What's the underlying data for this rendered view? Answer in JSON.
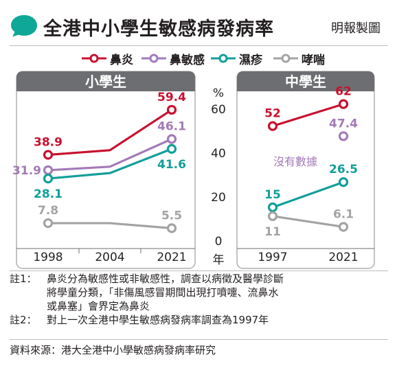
{
  "header": {
    "title": "全港中小學生敏感病發病率",
    "credit": "明報製圖"
  },
  "colors": {
    "rhinitis": "#c8102e",
    "allergic_rhinitis": "#a37ab8",
    "eczema": "#119e9a",
    "asthma": "#a3a3a3",
    "panel_header": "#6d6e71",
    "bubble": "#0fa896"
  },
  "legend": [
    {
      "key": "rhinitis",
      "label": "鼻炎"
    },
    {
      "key": "allergic_rhinitis",
      "label": "鼻敏感"
    },
    {
      "key": "eczema",
      "label": "濕疹"
    },
    {
      "key": "asthma",
      "label": "哮喘"
    }
  ],
  "chart_data": [
    {
      "type": "line",
      "title": "小學生",
      "x": [
        "1998",
        "2004",
        "2021"
      ],
      "ylim": [
        0,
        60
      ],
      "series": [
        {
          "name": "鼻炎",
          "key": "rhinitis",
          "values": [
            38.9,
            41,
            59.4
          ],
          "labels": [
            "38.9",
            "",
            "59.4"
          ]
        },
        {
          "name": "鼻敏感",
          "key": "allergic_rhinitis",
          "values": [
            31.9,
            33.5,
            46.1
          ],
          "labels": [
            "31.9",
            "",
            "46.1"
          ]
        },
        {
          "name": "濕疹",
          "key": "eczema",
          "values": [
            28.1,
            30.6,
            41.6
          ],
          "labels": [
            "28.1",
            "",
            "41.6"
          ]
        },
        {
          "name": "哮喘",
          "key": "asthma",
          "values": [
            7.8,
            7.8,
            5.5
          ],
          "labels": [
            "7.8",
            "",
            "5.5"
          ]
        }
      ]
    },
    {
      "type": "line",
      "title": "中學生",
      "x": [
        "1997",
        "2021"
      ],
      "ylim": [
        0,
        60
      ],
      "ylabel": "%",
      "yticks": [
        "0",
        "20",
        "40",
        "60"
      ],
      "xunit": "年",
      "annotation": "沒有數據",
      "series": [
        {
          "name": "鼻炎",
          "key": "rhinitis",
          "values": [
            52,
            62
          ],
          "labels": [
            "52",
            "62"
          ]
        },
        {
          "name": "鼻敏感",
          "key": "allergic_rhinitis",
          "values": [
            null,
            47.4
          ],
          "labels": [
            "",
            "47.4"
          ]
        },
        {
          "name": "濕疹",
          "key": "eczema",
          "values": [
            15,
            26.5
          ],
          "labels": [
            "15",
            "26.5"
          ]
        },
        {
          "name": "哮喘",
          "key": "asthma",
          "values": [
            11,
            6.1
          ],
          "labels": [
            "11",
            "6.1"
          ]
        }
      ]
    }
  ],
  "notes": [
    {
      "tag": "註1：",
      "text": "鼻炎分為敏感性或非敏感性，調查以病徵及醫學診斷\n將學童分類，「非傷風感冒期間出現打噴嚏、流鼻水\n或鼻塞」會界定為鼻炎"
    },
    {
      "tag": "註2：",
      "text": "對上一次全港中學生敏感病發病率調查為1997年"
    }
  ],
  "source": "資料來源：港大全港中小學敏感病發病率研究"
}
